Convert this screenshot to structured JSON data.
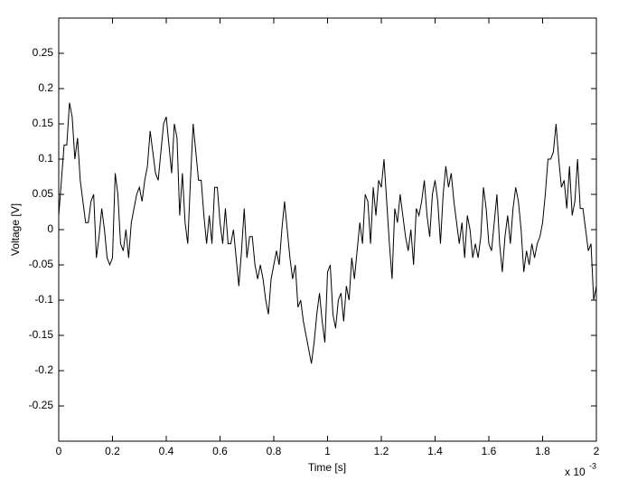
{
  "chart_data": {
    "type": "line",
    "xlabel": "Time [s]",
    "ylabel": "Voltage [V]",
    "x_multiplier": "x 10",
    "x_exponent": "-3",
    "xlim": [
      0,
      2
    ],
    "xticks": [
      0,
      0.2,
      0.4,
      0.6,
      0.8,
      1,
      1.2,
      1.4,
      1.6,
      1.8,
      2
    ],
    "ylim": [
      -0.3,
      0.3
    ],
    "yticks": [
      -0.25,
      -0.2,
      -0.15,
      -0.1,
      -0.05,
      0,
      0.05,
      0.1,
      0.15,
      0.2,
      0.25
    ],
    "grid": false,
    "x": [
      0,
      0.01,
      0.02,
      0.03,
      0.04,
      0.05,
      0.06,
      0.07,
      0.08,
      0.09,
      0.1,
      0.11,
      0.12,
      0.13,
      0.14,
      0.15,
      0.16,
      0.17,
      0.18,
      0.19,
      0.2,
      0.21,
      0.22,
      0.23,
      0.24,
      0.25,
      0.26,
      0.27,
      0.28,
      0.29,
      0.3,
      0.31,
      0.32,
      0.33,
      0.34,
      0.35,
      0.36,
      0.37,
      0.38,
      0.39,
      0.4,
      0.41,
      0.42,
      0.43,
      0.44,
      0.45,
      0.46,
      0.47,
      0.48,
      0.49,
      0.5,
      0.51,
      0.52,
      0.53,
      0.54,
      0.55,
      0.56,
      0.57,
      0.58,
      0.59,
      0.6,
      0.61,
      0.62,
      0.63,
      0.64,
      0.65,
      0.66,
      0.67,
      0.68,
      0.69,
      0.7,
      0.71,
      0.72,
      0.73,
      0.74,
      0.75,
      0.76,
      0.77,
      0.78,
      0.79,
      0.8,
      0.81,
      0.82,
      0.83,
      0.84,
      0.85,
      0.86,
      0.87,
      0.88,
      0.89,
      0.9,
      0.91,
      0.92,
      0.93,
      0.94,
      0.95,
      0.96,
      0.97,
      0.98,
      0.99,
      1,
      1.01,
      1.02,
      1.03,
      1.04,
      1.05,
      1.06,
      1.07,
      1.08,
      1.09,
      1.1,
      1.11,
      1.12,
      1.13,
      1.14,
      1.15,
      1.16,
      1.17,
      1.18,
      1.19,
      1.2,
      1.21,
      1.22,
      1.23,
      1.24,
      1.25,
      1.26,
      1.27,
      1.28,
      1.29,
      1.3,
      1.31,
      1.32,
      1.33,
      1.34,
      1.35,
      1.36,
      1.37,
      1.38,
      1.39,
      1.4,
      1.41,
      1.42,
      1.43,
      1.44,
      1.45,
      1.46,
      1.47,
      1.48,
      1.49,
      1.5,
      1.51,
      1.52,
      1.53,
      1.54,
      1.55,
      1.56,
      1.57,
      1.58,
      1.59,
      1.6,
      1.61,
      1.62,
      1.63,
      1.64,
      1.65,
      1.66,
      1.67,
      1.68,
      1.69,
      1.7,
      1.71,
      1.72,
      1.73,
      1.74,
      1.75,
      1.76,
      1.77,
      1.78,
      1.79,
      1.8,
      1.81,
      1.82,
      1.83,
      1.84,
      1.85,
      1.86,
      1.87,
      1.88,
      1.89,
      1.9,
      1.91,
      1.92,
      1.93,
      1.94,
      1.95,
      1.96,
      1.97,
      1.98,
      1.99,
      2
    ],
    "series": [
      {
        "name": "Voltage",
        "color": "#000000",
        "values": [
          0.02,
          0.07,
          0.12,
          0.12,
          0.18,
          0.16,
          0.1,
          0.13,
          0.07,
          0.04,
          0.01,
          0.01,
          0.04,
          0.05,
          -0.04,
          -0.01,
          0.03,
          0,
          -0.04,
          -0.05,
          -0.04,
          0.08,
          0.05,
          -0.02,
          -0.03,
          0,
          -0.04,
          0.01,
          0.03,
          0.05,
          0.06,
          0.04,
          0.07,
          0.09,
          0.14,
          0.11,
          0.08,
          0.07,
          0.11,
          0.15,
          0.16,
          0.12,
          0.08,
          0.15,
          0.13,
          0.02,
          0.08,
          0.01,
          -0.02,
          0.07,
          0.15,
          0.11,
          0.07,
          0.07,
          0.02,
          -0.02,
          0.02,
          -0.02,
          0.06,
          0.06,
          0.01,
          -0.02,
          0.03,
          -0.02,
          -0.02,
          0,
          -0.04,
          -0.08,
          -0.03,
          0.03,
          -0.04,
          -0.01,
          -0.01,
          -0.05,
          -0.07,
          -0.05,
          -0.07,
          -0.1,
          -0.12,
          -0.07,
          -0.05,
          -0.03,
          -0.05,
          0,
          0.04,
          0,
          -0.04,
          -0.07,
          -0.05,
          -0.11,
          -0.1,
          -0.13,
          -0.15,
          -0.17,
          -0.19,
          -0.16,
          -0.12,
          -0.09,
          -0.13,
          -0.16,
          -0.06,
          -0.05,
          -0.12,
          -0.14,
          -0.1,
          -0.09,
          -0.13,
          -0.08,
          -0.1,
          -0.04,
          -0.07,
          -0.03,
          0.01,
          -0.02,
          0.05,
          0.04,
          -0.02,
          0.06,
          0.02,
          0.07,
          0.06,
          0.1,
          0.04,
          -0.02,
          -0.07,
          0.03,
          0.01,
          0.05,
          0.02,
          -0.01,
          -0.03,
          0,
          -0.05,
          0.03,
          0.02,
          0.04,
          0.07,
          0.02,
          -0.01,
          0.05,
          0.07,
          0.04,
          -0.02,
          0.05,
          0.09,
          0.06,
          0.08,
          0.04,
          0.01,
          -0.02,
          0.01,
          -0.04,
          0.02,
          0,
          -0.04,
          -0.02,
          -0.04,
          -0.01,
          0.06,
          0.03,
          -0.02,
          -0.03,
          0.01,
          0.05,
          -0.02,
          -0.06,
          -0.01,
          0.02,
          -0.02,
          0.03,
          0.06,
          0.04,
          0,
          -0.06,
          -0.03,
          -0.05,
          -0.02,
          -0.04,
          -0.02,
          -0.01,
          0.01,
          0.05,
          0.1,
          0.1,
          0.11,
          0.15,
          0.1,
          0.06,
          0.07,
          0.03,
          0.09,
          0.02,
          0.04,
          0.1,
          0.03,
          0.03,
          0,
          -0.03,
          -0.02,
          -0.1,
          -0.08
        ]
      }
    ]
  }
}
